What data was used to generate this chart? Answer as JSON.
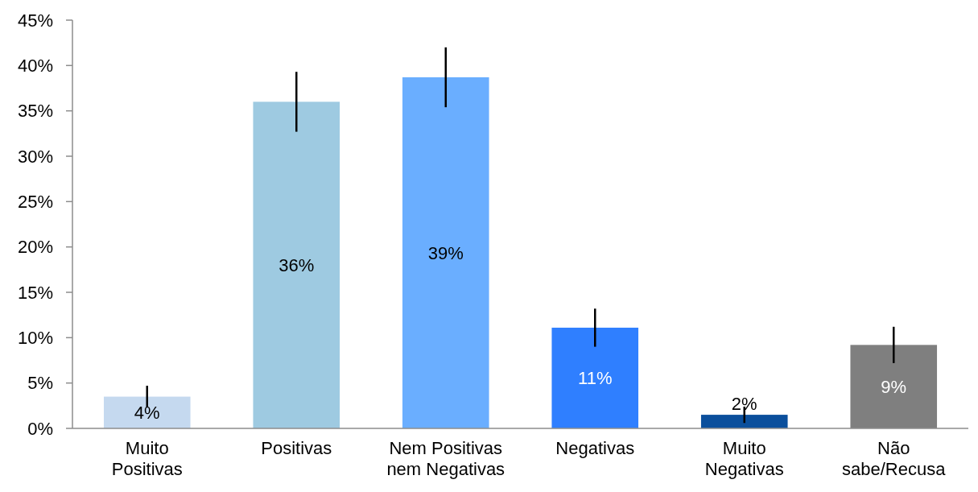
{
  "chart_data": {
    "type": "bar",
    "categories": [
      "Muito Positivas",
      "Positivas",
      "Nem Positivas nem Negativas",
      "Negativas",
      "Muito Negativas",
      "Não sabe/Recusa"
    ],
    "values": [
      3.5,
      36.0,
      38.7,
      11.1,
      1.5,
      9.2
    ],
    "colors": [
      "#c5d9ef",
      "#9ecae1",
      "#6aaeff",
      "#2f7fff",
      "#0b4f9c",
      "#7f7f7f"
    ],
    "errors": [
      1.2,
      3.3,
      3.3,
      2.1,
      0.9,
      2.0
    ],
    "value_labels": [
      "4%",
      "36%",
      "39%",
      "11%",
      "2%",
      "9%"
    ],
    "ylim": [
      0,
      45
    ],
    "yticks": [
      {
        "value": 0,
        "label": "0%"
      },
      {
        "value": 5,
        "label": "5%"
      },
      {
        "value": 10,
        "label": "10%"
      },
      {
        "value": 15,
        "label": "15%"
      },
      {
        "value": 20,
        "label": "20%"
      },
      {
        "value": 25,
        "label": "25%"
      },
      {
        "value": 30,
        "label": "30%"
      },
      {
        "value": 35,
        "label": "35%"
      },
      {
        "value": 40,
        "label": "40%"
      },
      {
        "value": 45,
        "label": "45%"
      }
    ],
    "grid": false
  }
}
